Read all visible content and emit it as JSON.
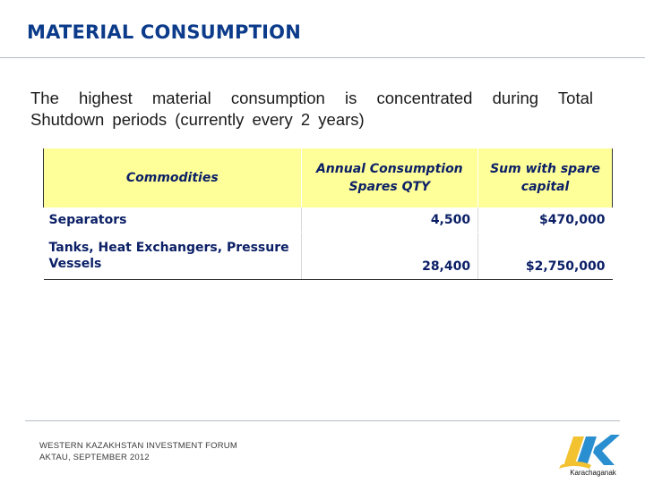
{
  "slide": {
    "title": "MATERIAL CONSUMPTION",
    "intro": "The highest material consumption is concentrated during Total Shutdown periods (currently every 2 years)"
  },
  "table": {
    "headers": [
      "Commodities",
      "Annual Consumption Spares QTY",
      "Sum with spare capital"
    ],
    "rows": [
      {
        "commodity": "Separators",
        "qty": "4,500",
        "sum": "$470,000"
      },
      {
        "commodity": "Tanks, Heat Exchangers, Pressure Vessels",
        "qty": "28,400",
        "sum": "$2,750,000"
      }
    ]
  },
  "footer": {
    "line1": "WESTERN KAZAKHSTAN INVESTMENT FORUM",
    "line2": "AKTAU, SEPTEMBER 2012"
  },
  "logo": {
    "text": "Karachaganak",
    "icon": "karachaganak-k-logo-icon"
  },
  "colors": {
    "title": "#0b3b8a",
    "header_fill": "#ffff99",
    "table_text": "#0b1f66",
    "logo_blue": "#2a8fd0",
    "logo_yellow": "#f2c230"
  }
}
